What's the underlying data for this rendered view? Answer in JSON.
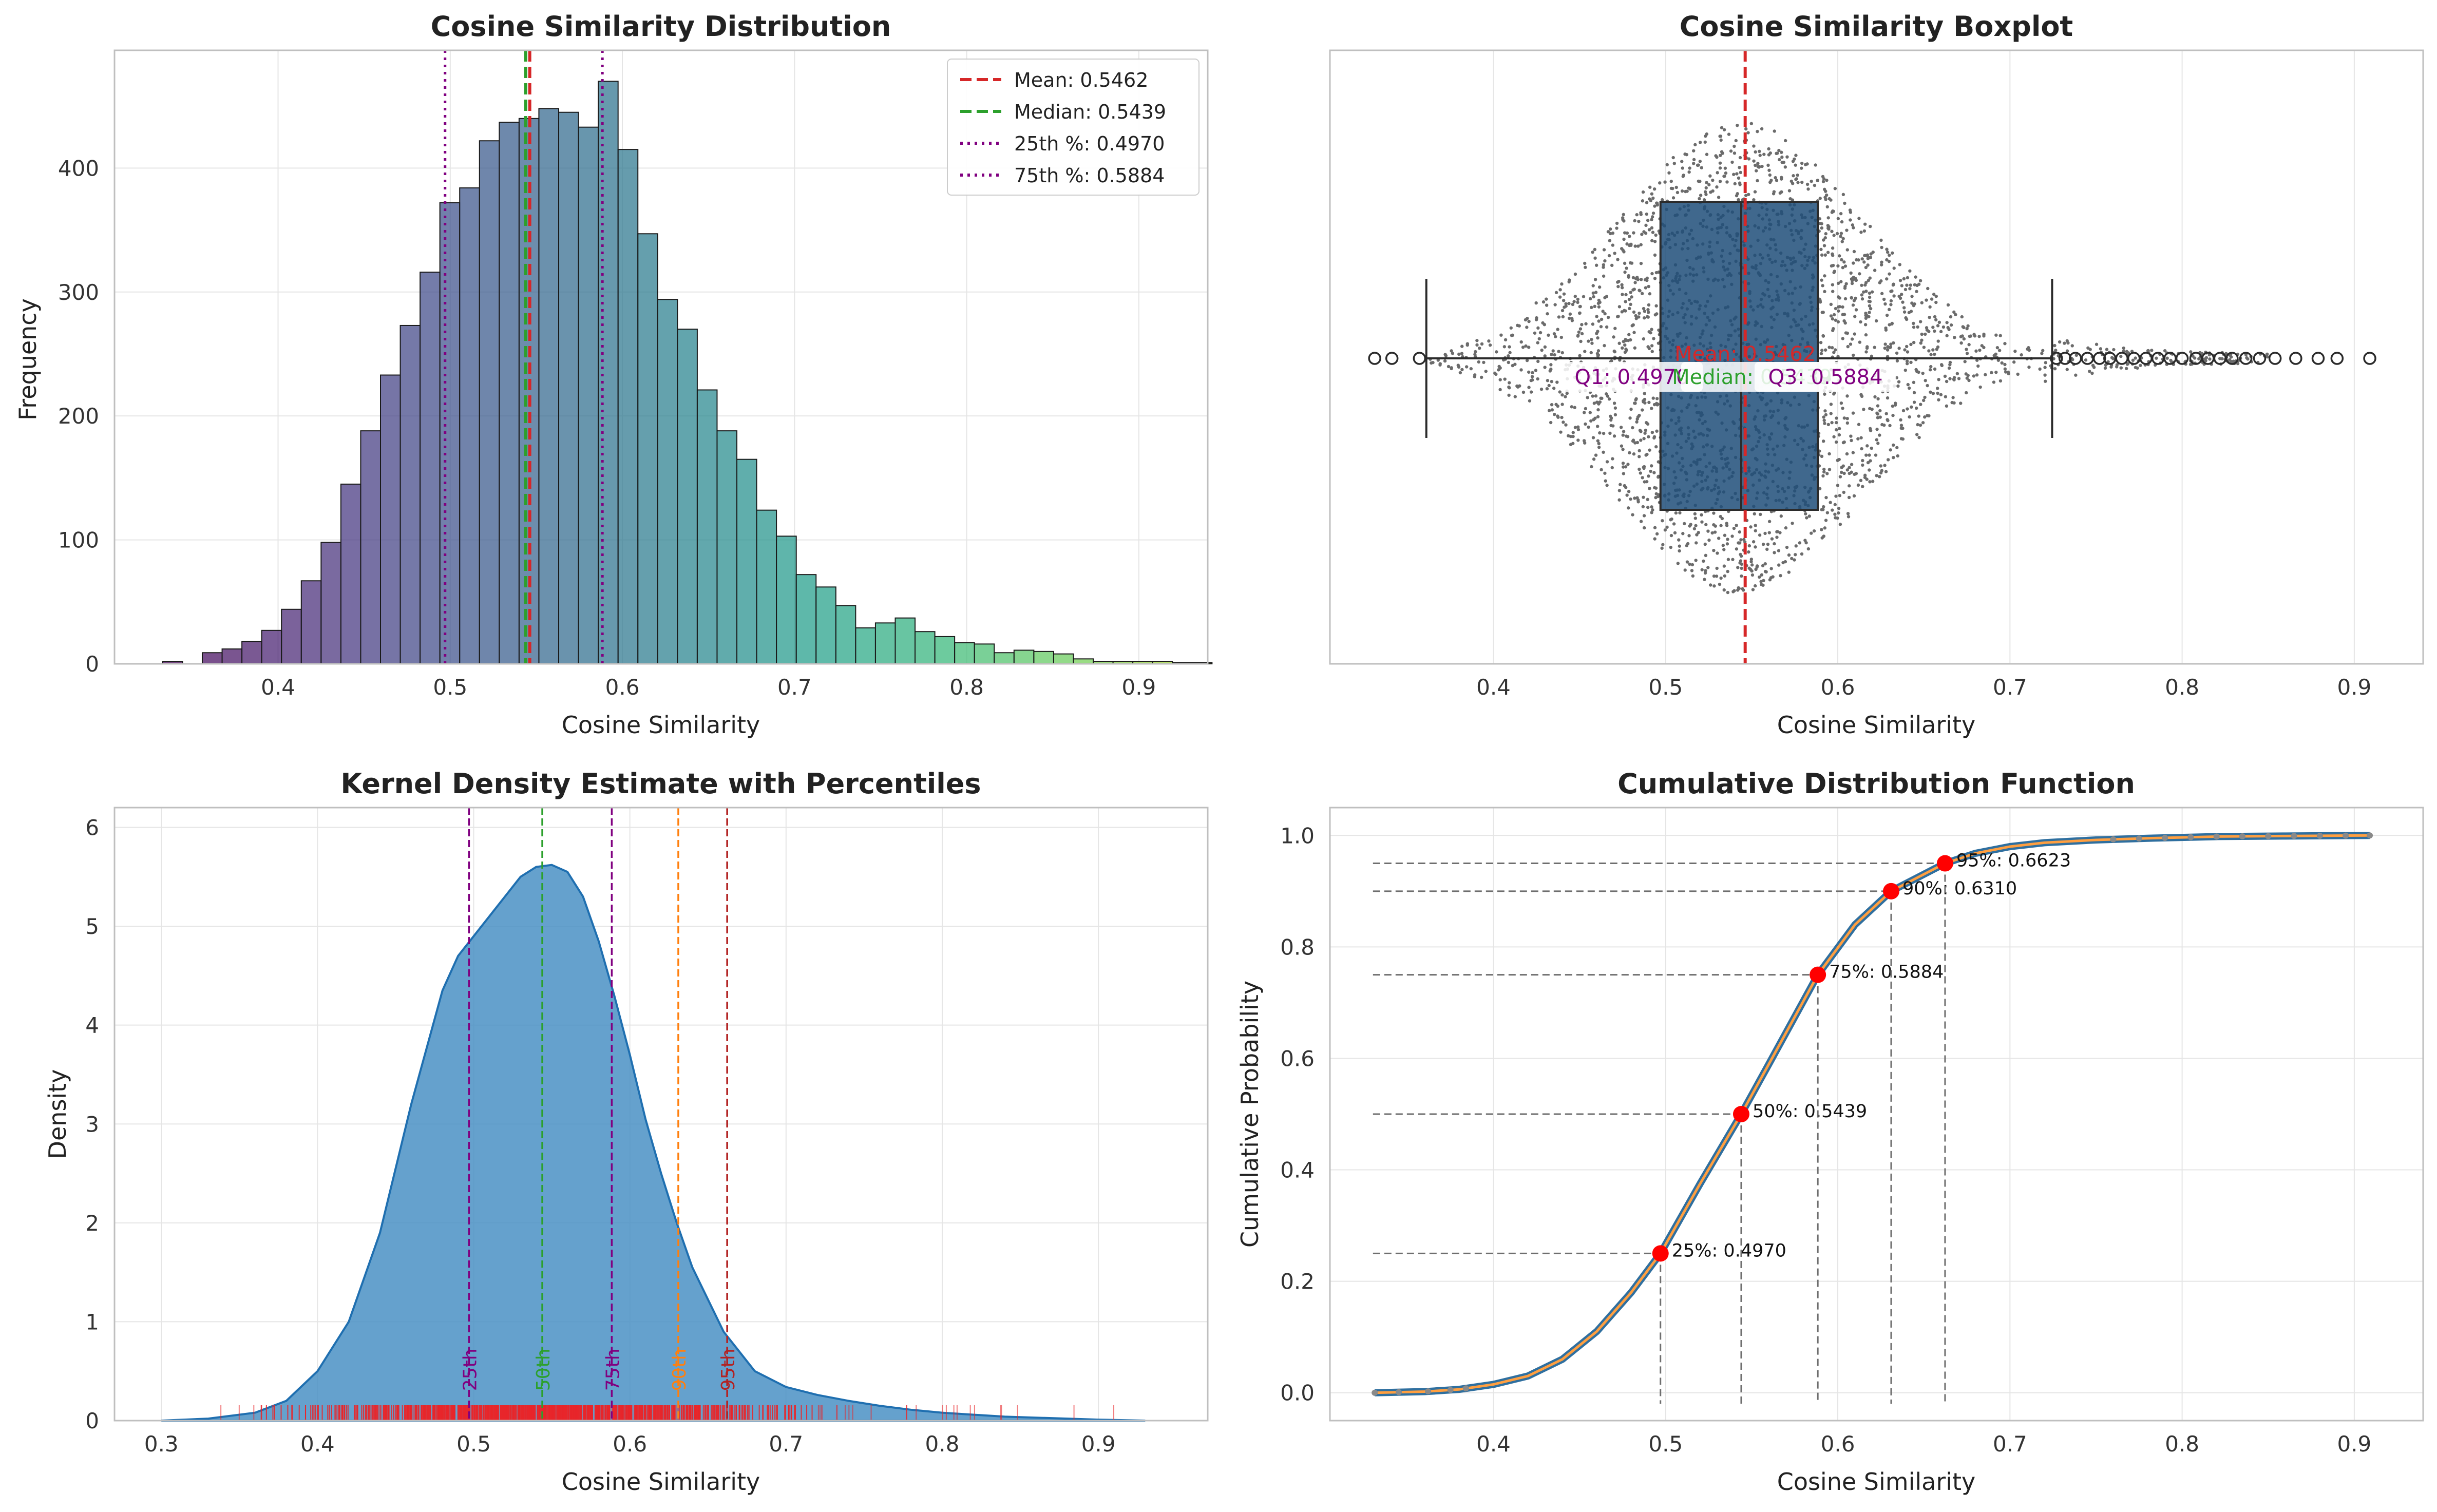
{
  "colors": {
    "mean": "#d62728",
    "median": "#2ca02c",
    "quartile": "#800080",
    "p90": "#ff7f0e",
    "p95": "#b22222",
    "grid": "#e5e5e5",
    "kde_fill": "#4a90c4",
    "kde_line": "#1f6fb0",
    "box_fill": "#1f4e79",
    "cdf_line": "#ff9f40",
    "cdf_marker": "#ff0000"
  },
  "chart_data": [
    {
      "type": "bar",
      "title": "Cosine Similarity Distribution",
      "xlabel": "Cosine Similarity",
      "ylabel": "Frequency",
      "xlim": [
        0.305,
        0.94
      ],
      "ylim": [
        0,
        495
      ],
      "xticks": [
        0.4,
        0.5,
        0.6,
        0.7,
        0.8,
        0.9
      ],
      "yticks": [
        0,
        100,
        200,
        300,
        400
      ],
      "grid": true,
      "bin_start": 0.333,
      "bin_width": 0.0115,
      "values": [
        2,
        0,
        9,
        12,
        18,
        27,
        44,
        67,
        98,
        145,
        188,
        233,
        273,
        316,
        372,
        384,
        422,
        437,
        440,
        448,
        445,
        433,
        470,
        415,
        347,
        294,
        270,
        221,
        188,
        165,
        124,
        103,
        72,
        62,
        47,
        29,
        33,
        37,
        26,
        22,
        17,
        16,
        9,
        11,
        10,
        8,
        4,
        2,
        2,
        2,
        2,
        1,
        1
      ],
      "legend_position": "top-right",
      "legend": [
        {
          "label": "Mean: 0.5462",
          "style": "dashed",
          "color_key": "mean"
        },
        {
          "label": "Median: 0.5439",
          "style": "dashed",
          "color_key": "median"
        },
        {
          "label": "25th %: 0.4970",
          "style": "dotted",
          "color_key": "quartile"
        },
        {
          "label": "75th %: 0.5884",
          "style": "dotted",
          "color_key": "quartile"
        }
      ],
      "vlines": [
        {
          "x": 0.5462,
          "color_key": "mean",
          "style": "dashed"
        },
        {
          "x": 0.5439,
          "color_key": "median",
          "style": "dashed"
        },
        {
          "x": 0.497,
          "color_key": "quartile",
          "style": "dotted"
        },
        {
          "x": 0.5884,
          "color_key": "quartile",
          "style": "dotted"
        }
      ]
    },
    {
      "type": "box",
      "title": "Cosine Similarity Boxplot",
      "xlabel": "Cosine Similarity",
      "xlim": [
        0.305,
        0.94
      ],
      "xticks": [
        0.4,
        0.5,
        0.6,
        0.7,
        0.8,
        0.9
      ],
      "grid": true,
      "whisker_low": 0.361,
      "q1": 0.497,
      "median": 0.5439,
      "q3": 0.5884,
      "whisker_high": 0.7245,
      "mean": 0.5462,
      "outliers": [
        0.331,
        0.341,
        0.357,
        0.727,
        0.732,
        0.738,
        0.745,
        0.752,
        0.758,
        0.765,
        0.772,
        0.779,
        0.786,
        0.793,
        0.8,
        0.808,
        0.815,
        0.822,
        0.829,
        0.837,
        0.845,
        0.854,
        0.866,
        0.879,
        0.89,
        0.909
      ],
      "annotations": [
        {
          "text": "Mean: 0.5462",
          "x": 0.5462,
          "color_key": "mean"
        },
        {
          "text": "Q1: 0.4970",
          "x": 0.497,
          "color_key": "quartile"
        },
        {
          "text": "Median: 0.5439",
          "x": 0.5439,
          "color_key": "median"
        },
        {
          "text": "Q3: 0.5884",
          "x": 0.5884,
          "color_key": "quartile"
        }
      ]
    },
    {
      "type": "area",
      "title": "Kernel Density Estimate with Percentiles",
      "xlabel": "Cosine Similarity",
      "ylabel": "Density",
      "xlim": [
        0.27,
        0.97
      ],
      "ylim": [
        0,
        6.2
      ],
      "xticks": [
        0.3,
        0.4,
        0.5,
        0.6,
        0.7,
        0.8,
        0.9
      ],
      "yticks": [
        0,
        1,
        2,
        3,
        4,
        5,
        6
      ],
      "grid": true,
      "x": [
        0.3,
        0.33,
        0.36,
        0.38,
        0.4,
        0.42,
        0.44,
        0.46,
        0.48,
        0.49,
        0.5,
        0.51,
        0.52,
        0.53,
        0.54,
        0.55,
        0.56,
        0.57,
        0.58,
        0.59,
        0.6,
        0.61,
        0.62,
        0.63,
        0.64,
        0.66,
        0.68,
        0.7,
        0.72,
        0.74,
        0.76,
        0.78,
        0.8,
        0.82,
        0.84,
        0.86,
        0.88,
        0.9,
        0.93
      ],
      "y": [
        0.0,
        0.02,
        0.08,
        0.2,
        0.5,
        1.0,
        1.9,
        3.2,
        4.35,
        4.7,
        4.9,
        5.1,
        5.3,
        5.5,
        5.6,
        5.62,
        5.55,
        5.3,
        4.85,
        4.3,
        3.7,
        3.05,
        2.5,
        2.0,
        1.55,
        0.9,
        0.5,
        0.34,
        0.26,
        0.2,
        0.15,
        0.11,
        0.08,
        0.06,
        0.04,
        0.03,
        0.02,
        0.01,
        0.0
      ],
      "percentiles": [
        {
          "label": "25th",
          "x": 0.497,
          "color_key": "quartile"
        },
        {
          "label": "50th",
          "x": 0.5439,
          "color_key": "median"
        },
        {
          "label": "75th",
          "x": 0.5884,
          "color_key": "quartile"
        },
        {
          "label": "90th",
          "x": 0.631,
          "color_key": "p90"
        },
        {
          "label": "95th",
          "x": 0.6623,
          "color_key": "p95"
        }
      ],
      "rug_range": [
        0.33,
        0.91
      ]
    },
    {
      "type": "line",
      "title": "Cumulative Distribution Function",
      "xlabel": "Cosine Similarity",
      "ylabel": "Cumulative Probability",
      "xlim": [
        0.305,
        0.94
      ],
      "ylim": [
        -0.05,
        1.05
      ],
      "xticks": [
        0.4,
        0.5,
        0.6,
        0.7,
        0.8,
        0.9
      ],
      "yticks": [
        0.0,
        0.2,
        0.4,
        0.6,
        0.8,
        1.0
      ],
      "grid": true,
      "x": [
        0.331,
        0.36,
        0.38,
        0.4,
        0.42,
        0.44,
        0.46,
        0.48,
        0.497,
        0.52,
        0.5439,
        0.56,
        0.5884,
        0.61,
        0.631,
        0.6623,
        0.68,
        0.7,
        0.72,
        0.75,
        0.78,
        0.82,
        0.86,
        0.909
      ],
      "y": [
        0.0,
        0.002,
        0.006,
        0.015,
        0.03,
        0.06,
        0.11,
        0.18,
        0.25,
        0.375,
        0.5,
        0.59,
        0.75,
        0.84,
        0.9,
        0.95,
        0.968,
        0.98,
        0.987,
        0.992,
        0.995,
        0.998,
        0.999,
        1.0
      ],
      "percentile_points": [
        {
          "p": 0.25,
          "x": 0.497,
          "label": "25%: 0.4970"
        },
        {
          "p": 0.5,
          "x": 0.5439,
          "label": "50%: 0.5439"
        },
        {
          "p": 0.75,
          "x": 0.5884,
          "label": "75%: 0.5884"
        },
        {
          "p": 0.9,
          "x": 0.631,
          "label": "90%: 0.6310"
        },
        {
          "p": 0.95,
          "x": 0.6623,
          "label": "95%: 0.6623"
        }
      ]
    }
  ]
}
